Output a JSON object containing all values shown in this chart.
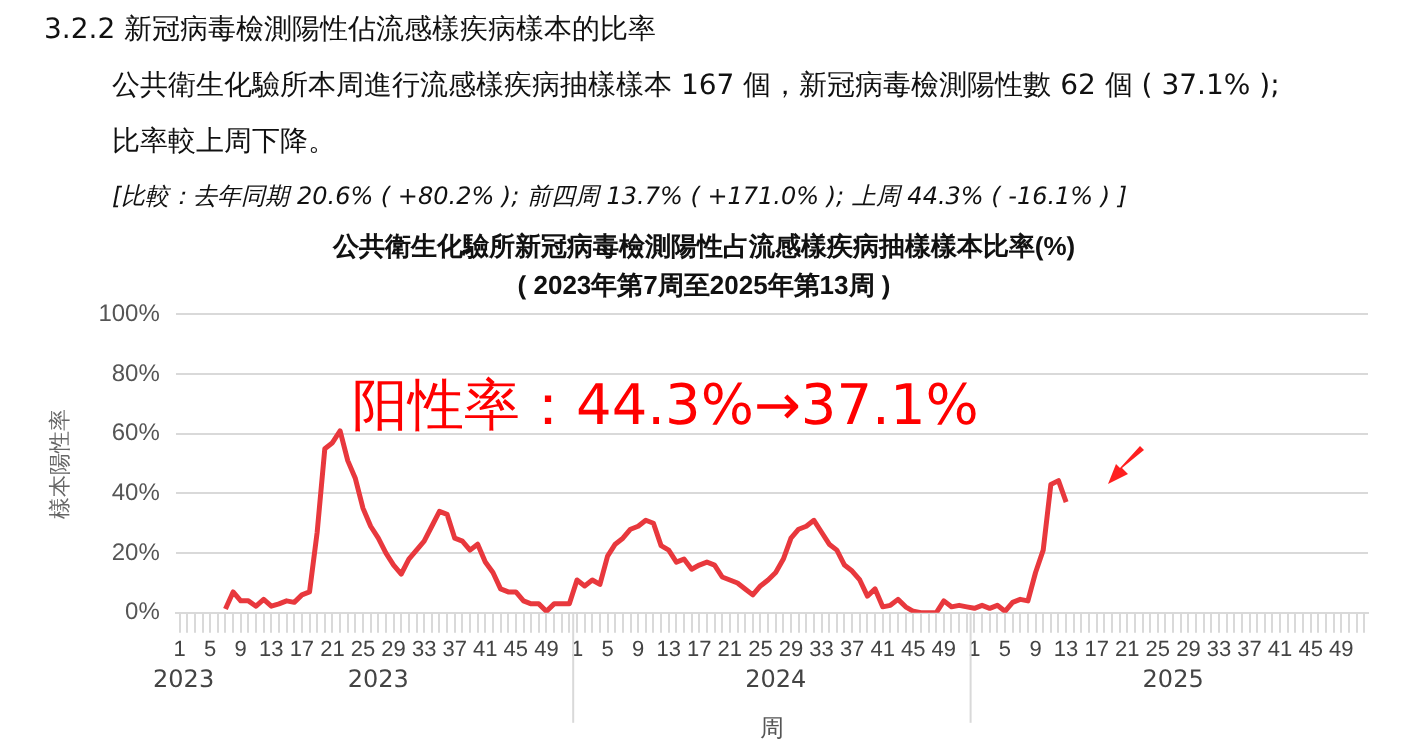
{
  "chart_data": {
    "type": "line",
    "title": "公共衛生化驗所新冠病毒檢測陽性占流感樣疾病抽樣樣本比率(%)",
    "subtitle": "( 2023年第7周至2025年第13周 )",
    "xlabel": "周",
    "ylabel": "樣本陽性率",
    "annotations": [
      "3.2.2 新冠病毒檢測陽性佔流感樣疾病樣本的比率",
      "公共衛生化驗所本周進行流感樣疾病抽樣樣本 167 個，新冠病毒檢測陽性數 62 個 ( 37.1% );",
      "比率較上周下降。",
      "[比較：去年同期 20.6% ( +80.2% ); 前四周 13.7% ( +171.0% ); 上周 44.3% ( -16.1% ) ]",
      "阳性率：44.3%→37.1%",
      "2023",
      "2023",
      "2024",
      "2025"
    ],
    "categories": [
      "1",
      null,
      null,
      null,
      "5",
      null,
      null,
      null,
      "9",
      null,
      null,
      null,
      "13",
      null,
      null,
      null,
      "17",
      null,
      null,
      null,
      "21",
      null,
      null,
      null,
      "25",
      null,
      null,
      null,
      "29",
      null,
      null,
      null,
      "33",
      null,
      null,
      null,
      "37",
      null,
      null,
      null,
      "41",
      null,
      null,
      null,
      "45",
      null,
      null,
      null,
      "49",
      null,
      null,
      null,
      "1",
      null,
      null,
      null,
      "5",
      null,
      null,
      null,
      "9",
      null,
      null,
      null,
      "13",
      null,
      null,
      null,
      "17",
      null,
      null,
      null,
      "21",
      null,
      null,
      null,
      "25",
      null,
      null,
      null,
      "29",
      null,
      null,
      null,
      "33",
      null,
      null,
      null,
      "37",
      null,
      null,
      null,
      "41",
      null,
      null,
      null,
      "45",
      null,
      null,
      null,
      "49",
      null,
      null,
      null,
      "1",
      null,
      null,
      null,
      "5",
      null,
      null,
      null,
      "9",
      null,
      null,
      null,
      "13",
      null,
      null,
      null,
      "17",
      null,
      null,
      null,
      "21",
      null,
      null,
      null,
      "25",
      null,
      null,
      null,
      "29",
      null,
      null,
      null,
      "33",
      null,
      null,
      null,
      "37",
      null,
      null,
      null,
      "41",
      null,
      null,
      null,
      "45",
      null,
      null,
      null,
      "49",
      null,
      null,
      null
    ],
    "series": [
      {
        "color": "#e8383d",
        "values": [
          null,
          null,
          null,
          null,
          null,
          null,
          1.3,
          7,
          4,
          4,
          2.2,
          4.5,
          2.2,
          3,
          4,
          3.5,
          6,
          7,
          27,
          55,
          57,
          61,
          51,
          45,
          35,
          29,
          25,
          20,
          16,
          13,
          18,
          21,
          24,
          29,
          34,
          33,
          25,
          24,
          21,
          23,
          17,
          13.5,
          8,
          7,
          7,
          4,
          3,
          3,
          0.5,
          3,
          3,
          3,
          11,
          9,
          11,
          9.5,
          19,
          23,
          25,
          28,
          29,
          31,
          30,
          22.5,
          21,
          17,
          18,
          14.6,
          16,
          17,
          16,
          12,
          11,
          10,
          8,
          6,
          9,
          11,
          13.5,
          18,
          25,
          28,
          29,
          31,
          27,
          23,
          21,
          16,
          14,
          11,
          5.6,
          8,
          2,
          2.5,
          4.5,
          2,
          0.5,
          0,
          0,
          0,
          4,
          2,
          2.5,
          2,
          1.5,
          2.5,
          1.5,
          2.5,
          0.5,
          3.5,
          4.5,
          4,
          13.5,
          21,
          43,
          44.3,
          37.1,
          null,
          null,
          null,
          null,
          null,
          null,
          null,
          null,
          null,
          null,
          null,
          null,
          null,
          null,
          null,
          null,
          null,
          null,
          null,
          null,
          null,
          null,
          null,
          null,
          null,
          null,
          null,
          null,
          null,
          null,
          null,
          null,
          null,
          null,
          null,
          null,
          null,
          null,
          null
        ]
      }
    ],
    "ylim": [
      0,
      100
    ],
    "yticks": [
      {
        "value": 0,
        "label": "0%"
      },
      {
        "value": 20,
        "label": "20%"
      },
      {
        "value": 40,
        "label": "40%"
      },
      {
        "value": 60,
        "label": "60%"
      },
      {
        "value": 80,
        "label": "80%"
      },
      {
        "value": 100,
        "label": "100%"
      }
    ],
    "grid": "y",
    "legend": false,
    "marker": "none",
    "line_style": "solid"
  }
}
